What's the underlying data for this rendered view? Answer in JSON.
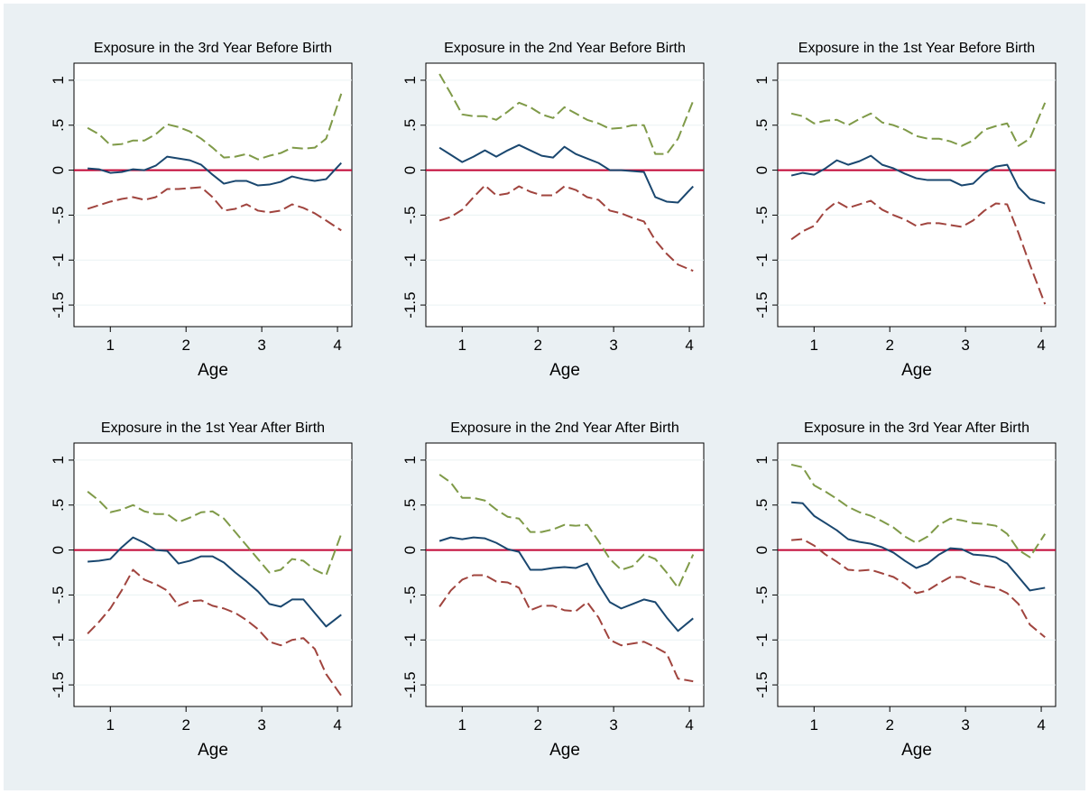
{
  "chart_data": [
    {
      "type": "line",
      "title": "Exposure in the 3rd Year Before Birth",
      "x_label": "Age",
      "x": [
        0.7,
        0.85,
        1.0,
        1.15,
        1.3,
        1.45,
        1.6,
        1.75,
        1.9,
        2.05,
        2.2,
        2.35,
        2.5,
        2.65,
        2.8,
        2.95,
        3.1,
        3.25,
        3.4,
        3.55,
        3.7,
        3.85,
        4.05
      ],
      "series": [
        {
          "color": "#1a476f",
          "dash": false,
          "values": [
            0.02,
            0.01,
            -0.03,
            -0.02,
            0.01,
            0.0,
            0.05,
            0.15,
            0.13,
            0.11,
            0.06,
            -0.05,
            -0.15,
            -0.12,
            -0.12,
            -0.17,
            -0.16,
            -0.13,
            -0.07,
            -0.1,
            -0.12,
            -0.1,
            0.08
          ]
        },
        {
          "color": "#7f9a48",
          "dash": true,
          "values": [
            0.47,
            0.4,
            0.28,
            0.29,
            0.33,
            0.33,
            0.4,
            0.51,
            0.48,
            0.43,
            0.35,
            0.25,
            0.14,
            0.15,
            0.18,
            0.12,
            0.16,
            0.19,
            0.25,
            0.24,
            0.25,
            0.35,
            0.85
          ]
        },
        {
          "color": "#a0443e",
          "dash": true,
          "values": [
            -0.43,
            -0.39,
            -0.35,
            -0.32,
            -0.3,
            -0.33,
            -0.3,
            -0.21,
            -0.21,
            -0.2,
            -0.19,
            -0.3,
            -0.45,
            -0.43,
            -0.38,
            -0.45,
            -0.47,
            -0.45,
            -0.38,
            -0.42,
            -0.48,
            -0.56,
            -0.67
          ]
        }
      ],
      "xlim": [
        0.52,
        4.19
      ],
      "xticks": [
        1,
        2,
        3,
        4
      ],
      "ylim": [
        -1.74,
        1.19
      ],
      "yticks": [
        1,
        {
          "value": 0.5,
          "label": ".5"
        },
        0,
        {
          "value": -0.5,
          "label": "-.5"
        },
        -1,
        -1.5
      ],
      "refline": {
        "value": 0,
        "color": "#c10534"
      },
      "grid": true
    },
    {
      "type": "line",
      "title": "Exposure in the 2nd Year Before Birth",
      "x_label": "Age",
      "x": [
        0.7,
        0.85,
        1.0,
        1.15,
        1.3,
        1.45,
        1.6,
        1.75,
        1.9,
        2.05,
        2.2,
        2.35,
        2.5,
        2.65,
        2.8,
        2.95,
        3.1,
        3.25,
        3.4,
        3.55,
        3.7,
        3.85,
        4.05
      ],
      "series": [
        {
          "color": "#1a476f",
          "dash": false,
          "values": [
            0.25,
            0.17,
            0.09,
            0.15,
            0.22,
            0.15,
            0.22,
            0.28,
            0.22,
            0.16,
            0.14,
            0.26,
            0.18,
            0.13,
            0.08,
            0.0,
            0.0,
            -0.01,
            -0.02,
            -0.3,
            -0.35,
            -0.36,
            -0.18
          ]
        },
        {
          "color": "#7f9a48",
          "dash": true,
          "values": [
            1.07,
            0.85,
            0.62,
            0.6,
            0.6,
            0.56,
            0.65,
            0.75,
            0.7,
            0.62,
            0.58,
            0.7,
            0.63,
            0.56,
            0.52,
            0.46,
            0.47,
            0.5,
            0.5,
            0.18,
            0.18,
            0.35,
            0.77
          ]
        },
        {
          "color": "#a0443e",
          "dash": true,
          "values": [
            -0.56,
            -0.52,
            -0.44,
            -0.3,
            -0.17,
            -0.28,
            -0.26,
            -0.18,
            -0.24,
            -0.28,
            -0.28,
            -0.18,
            -0.22,
            -0.3,
            -0.33,
            -0.45,
            -0.48,
            -0.53,
            -0.57,
            -0.78,
            -0.93,
            -1.05,
            -1.12
          ]
        }
      ],
      "xlim": [
        0.52,
        4.19
      ],
      "xticks": [
        1,
        2,
        3,
        4
      ],
      "ylim": [
        -1.74,
        1.19
      ],
      "yticks": [
        1,
        {
          "value": 0.5,
          "label": ".5"
        },
        0,
        {
          "value": -0.5,
          "label": "-.5"
        },
        -1,
        -1.5
      ],
      "refline": {
        "value": 0,
        "color": "#c10534"
      },
      "grid": true
    },
    {
      "type": "line",
      "title": "Exposure in the 1st Year Before Birth",
      "x_label": "Age",
      "x": [
        0.7,
        0.85,
        1.0,
        1.15,
        1.3,
        1.45,
        1.6,
        1.75,
        1.9,
        2.05,
        2.2,
        2.35,
        2.5,
        2.65,
        2.8,
        2.95,
        3.1,
        3.25,
        3.4,
        3.55,
        3.7,
        3.85,
        4.05
      ],
      "series": [
        {
          "color": "#1a476f",
          "dash": false,
          "values": [
            -0.06,
            -0.03,
            -0.05,
            0.02,
            0.11,
            0.06,
            0.1,
            0.16,
            0.06,
            0.02,
            -0.04,
            -0.09,
            -0.11,
            -0.11,
            -0.11,
            -0.17,
            -0.15,
            -0.03,
            0.04,
            0.06,
            -0.19,
            -0.32,
            -0.37
          ]
        },
        {
          "color": "#7f9a48",
          "dash": true,
          "values": [
            0.63,
            0.6,
            0.52,
            0.55,
            0.56,
            0.5,
            0.57,
            0.63,
            0.53,
            0.5,
            0.45,
            0.38,
            0.35,
            0.35,
            0.32,
            0.27,
            0.33,
            0.45,
            0.49,
            0.52,
            0.27,
            0.35,
            0.75
          ]
        },
        {
          "color": "#a0443e",
          "dash": true,
          "values": [
            -0.77,
            -0.68,
            -0.62,
            -0.45,
            -0.35,
            -0.42,
            -0.38,
            -0.34,
            -0.44,
            -0.5,
            -0.55,
            -0.62,
            -0.59,
            -0.59,
            -0.61,
            -0.63,
            -0.56,
            -0.45,
            -0.37,
            -0.38,
            -0.7,
            -1.05,
            -1.49
          ]
        }
      ],
      "xlim": [
        0.52,
        4.19
      ],
      "xticks": [
        1,
        2,
        3,
        4
      ],
      "ylim": [
        -1.74,
        1.19
      ],
      "yticks": [
        1,
        {
          "value": 0.5,
          "label": ".5"
        },
        0,
        {
          "value": -0.5,
          "label": "-.5"
        },
        -1,
        -1.5
      ],
      "refline": {
        "value": 0,
        "color": "#c10534"
      },
      "grid": true
    },
    {
      "type": "line",
      "title": "Exposure in the 1st Year After Birth",
      "x_label": "Age",
      "x": [
        0.7,
        0.85,
        1.0,
        1.15,
        1.3,
        1.45,
        1.6,
        1.75,
        1.9,
        2.05,
        2.2,
        2.35,
        2.5,
        2.65,
        2.8,
        2.95,
        3.1,
        3.25,
        3.4,
        3.55,
        3.7,
        3.85,
        4.05
      ],
      "series": [
        {
          "color": "#1a476f",
          "dash": false,
          "values": [
            -0.13,
            -0.12,
            -0.1,
            0.03,
            0.14,
            0.08,
            0.0,
            -0.01,
            -0.15,
            -0.12,
            -0.07,
            -0.07,
            -0.14,
            -0.25,
            -0.35,
            -0.46,
            -0.6,
            -0.63,
            -0.55,
            -0.55,
            -0.7,
            -0.85,
            -0.72
          ]
        },
        {
          "color": "#7f9a48",
          "dash": true,
          "values": [
            0.65,
            0.55,
            0.42,
            0.45,
            0.5,
            0.43,
            0.4,
            0.4,
            0.31,
            0.36,
            0.42,
            0.43,
            0.35,
            0.2,
            0.05,
            -0.1,
            -0.25,
            -0.22,
            -0.1,
            -0.12,
            -0.22,
            -0.28,
            0.18
          ]
        },
        {
          "color": "#a0443e",
          "dash": true,
          "values": [
            -0.93,
            -0.8,
            -0.65,
            -0.45,
            -0.22,
            -0.33,
            -0.38,
            -0.45,
            -0.62,
            -0.57,
            -0.56,
            -0.62,
            -0.65,
            -0.7,
            -0.78,
            -0.88,
            -1.02,
            -1.06,
            -1.0,
            -0.98,
            -1.1,
            -1.38,
            -1.62
          ]
        }
      ],
      "xlim": [
        0.52,
        4.19
      ],
      "xticks": [
        1,
        2,
        3,
        4
      ],
      "ylim": [
        -1.74,
        1.19
      ],
      "yticks": [
        1,
        {
          "value": 0.5,
          "label": ".5"
        },
        0,
        {
          "value": -0.5,
          "label": "-.5"
        },
        -1,
        -1.5
      ],
      "refline": {
        "value": 0,
        "color": "#c10534"
      },
      "grid": true
    },
    {
      "type": "line",
      "title": "Exposure in the 2nd Year After Birth",
      "x_label": "Age",
      "x": [
        0.7,
        0.85,
        1.0,
        1.15,
        1.3,
        1.45,
        1.6,
        1.75,
        1.9,
        2.05,
        2.2,
        2.35,
        2.5,
        2.65,
        2.8,
        2.95,
        3.1,
        3.25,
        3.4,
        3.55,
        3.7,
        3.85,
        4.05
      ],
      "series": [
        {
          "color": "#1a476f",
          "dash": false,
          "values": [
            0.1,
            0.14,
            0.12,
            0.14,
            0.13,
            0.08,
            0.01,
            -0.02,
            -0.22,
            -0.22,
            -0.2,
            -0.19,
            -0.2,
            -0.15,
            -0.38,
            -0.58,
            -0.65,
            -0.6,
            -0.55,
            -0.58,
            -0.75,
            -0.9,
            -0.76
          ]
        },
        {
          "color": "#7f9a48",
          "dash": true,
          "values": [
            0.84,
            0.75,
            0.58,
            0.58,
            0.55,
            0.45,
            0.37,
            0.35,
            0.2,
            0.2,
            0.23,
            0.28,
            0.27,
            0.28,
            0.1,
            -0.1,
            -0.22,
            -0.18,
            -0.05,
            -0.1,
            -0.25,
            -0.42,
            -0.05
          ]
        },
        {
          "color": "#a0443e",
          "dash": true,
          "values": [
            -0.63,
            -0.45,
            -0.33,
            -0.28,
            -0.28,
            -0.35,
            -0.36,
            -0.42,
            -0.67,
            -0.62,
            -0.62,
            -0.67,
            -0.68,
            -0.58,
            -0.75,
            -1.0,
            -1.06,
            -1.04,
            -1.02,
            -1.08,
            -1.15,
            -1.43,
            -1.46
          ]
        }
      ],
      "xlim": [
        0.52,
        4.19
      ],
      "xticks": [
        1,
        2,
        3,
        4
      ],
      "ylim": [
        -1.74,
        1.19
      ],
      "yticks": [
        1,
        {
          "value": 0.5,
          "label": ".5"
        },
        0,
        {
          "value": -0.5,
          "label": "-.5"
        },
        -1,
        -1.5
      ],
      "refline": {
        "value": 0,
        "color": "#c10534"
      },
      "grid": true
    },
    {
      "type": "line",
      "title": "Exposure in the 3rd Year After Birth",
      "x_label": "Age",
      "x": [
        0.7,
        0.85,
        1.0,
        1.15,
        1.3,
        1.45,
        1.6,
        1.75,
        1.9,
        2.05,
        2.2,
        2.35,
        2.5,
        2.65,
        2.8,
        2.95,
        3.1,
        3.25,
        3.4,
        3.55,
        3.7,
        3.85,
        4.05
      ],
      "series": [
        {
          "color": "#1a476f",
          "dash": false,
          "values": [
            0.53,
            0.52,
            0.38,
            0.3,
            0.22,
            0.12,
            0.09,
            0.07,
            0.03,
            -0.03,
            -0.12,
            -0.2,
            -0.15,
            -0.05,
            0.02,
            0.01,
            -0.05,
            -0.06,
            -0.08,
            -0.15,
            -0.3,
            -0.45,
            -0.42
          ]
        },
        {
          "color": "#7f9a48",
          "dash": true,
          "values": [
            0.95,
            0.92,
            0.72,
            0.65,
            0.57,
            0.48,
            0.42,
            0.38,
            0.32,
            0.25,
            0.15,
            0.08,
            0.15,
            0.28,
            0.35,
            0.33,
            0.3,
            0.29,
            0.27,
            0.18,
            0.0,
            -0.08,
            0.18
          ]
        },
        {
          "color": "#a0443e",
          "dash": true,
          "values": [
            0.11,
            0.12,
            0.05,
            -0.05,
            -0.13,
            -0.22,
            -0.23,
            -0.22,
            -0.26,
            -0.3,
            -0.38,
            -0.48,
            -0.45,
            -0.37,
            -0.3,
            -0.3,
            -0.36,
            -0.4,
            -0.42,
            -0.48,
            -0.6,
            -0.83,
            -0.97
          ]
        }
      ],
      "xlim": [
        0.52,
        4.19
      ],
      "xticks": [
        1,
        2,
        3,
        4
      ],
      "ylim": [
        -1.74,
        1.19
      ],
      "yticks": [
        1,
        {
          "value": 0.5,
          "label": ".5"
        },
        0,
        {
          "value": -0.5,
          "label": "-.5"
        },
        -1,
        -1.5
      ],
      "refline": {
        "value": 0,
        "color": "#c10534"
      },
      "grid": true
    }
  ]
}
